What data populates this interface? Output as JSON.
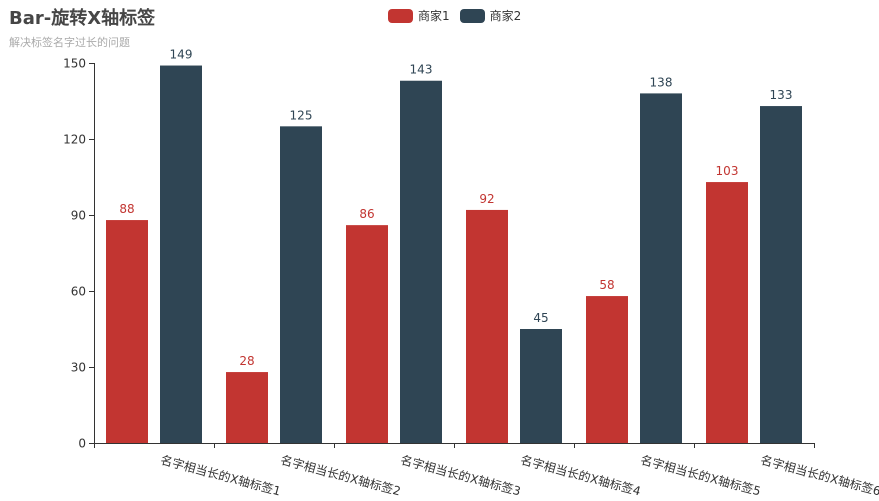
{
  "chart_data": {
    "type": "bar",
    "title": "Bar-旋转X轴标签",
    "subtitle": "解决标签名字过长的问题",
    "categories": [
      "名字相当长的X轴标签1",
      "名字相当长的X轴标签2",
      "名字相当长的X轴标签3",
      "名字相当长的X轴标签4",
      "名字相当长的X轴标签5",
      "名字相当长的X轴标签6"
    ],
    "series": [
      {
        "name": "商家1",
        "values": [
          88,
          28,
          86,
          92,
          58,
          103
        ],
        "color": "#c23531"
      },
      {
        "name": "商家2",
        "values": [
          149,
          125,
          143,
          45,
          138,
          133
        ],
        "color": "#2f4554"
      }
    ],
    "ylim": [
      0,
      150
    ],
    "yticks": [
      0,
      30,
      60,
      90,
      120,
      150
    ],
    "xlabel_rotate": -15,
    "legend_position": "top-center",
    "grid": false
  }
}
